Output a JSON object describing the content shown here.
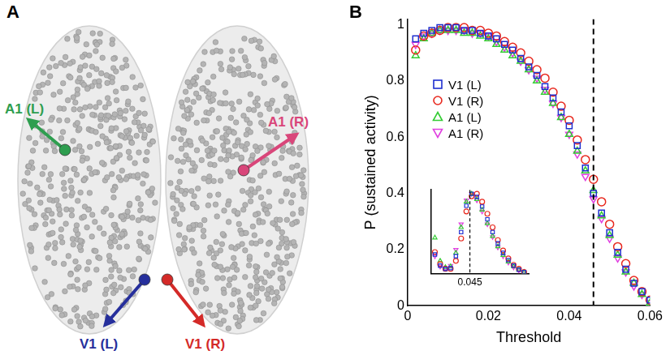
{
  "panel_labels": [
    "A",
    "B"
  ],
  "diagram": {
    "regions": [
      {
        "label": "A1 (L)",
        "color": "#2e9e4f"
      },
      {
        "label": "A1 (R)",
        "color": "#d9467a"
      },
      {
        "label": "V1 (L)",
        "color": "#262f9c"
      },
      {
        "label": "V1 (R)",
        "color": "#d42a28"
      }
    ]
  },
  "chart_data": [
    {
      "type": "scatter",
      "x_label": "Threshold",
      "y_label": "P (sustained activity)",
      "x": [
        0.002,
        0.004,
        0.006,
        0.008,
        0.01,
        0.012,
        0.014,
        0.016,
        0.018,
        0.02,
        0.022,
        0.024,
        0.026,
        0.028,
        0.03,
        0.032,
        0.034,
        0.036,
        0.038,
        0.04,
        0.042,
        0.044,
        0.046,
        0.048,
        0.05,
        0.052,
        0.054,
        0.056,
        0.058,
        0.06
      ],
      "series": [
        {
          "name": "V1 (L)",
          "color": "#1f2fd0",
          "marker": "square",
          "values": [
            0.95,
            0.97,
            0.98,
            0.99,
            0.99,
            0.99,
            0.98,
            0.98,
            0.97,
            0.96,
            0.95,
            0.93,
            0.91,
            0.88,
            0.85,
            0.82,
            0.78,
            0.74,
            0.69,
            0.64,
            0.57,
            0.49,
            0.4,
            0.33,
            0.26,
            0.19,
            0.13,
            0.08,
            0.05,
            0.02
          ]
        },
        {
          "name": "V1 (R)",
          "color": "#e8281e",
          "marker": "circle",
          "values": [
            0.91,
            0.96,
            0.97,
            0.98,
            0.99,
            0.99,
            0.99,
            0.98,
            0.98,
            0.97,
            0.96,
            0.94,
            0.92,
            0.9,
            0.87,
            0.84,
            0.81,
            0.76,
            0.71,
            0.66,
            0.59,
            0.52,
            0.45,
            0.37,
            0.29,
            0.21,
            0.15,
            0.09,
            0.05,
            0.02
          ]
        },
        {
          "name": "A1 (L)",
          "color": "#33cc33",
          "marker": "triangle",
          "values": [
            0.89,
            0.95,
            0.97,
            0.98,
            0.98,
            0.98,
            0.97,
            0.97,
            0.96,
            0.95,
            0.93,
            0.91,
            0.89,
            0.87,
            0.84,
            0.8,
            0.76,
            0.72,
            0.67,
            0.61,
            0.55,
            0.48,
            0.41,
            0.32,
            0.25,
            0.18,
            0.12,
            0.08,
            0.04,
            0.01
          ]
        },
        {
          "name": "A1 (R)",
          "color": "#e040e0",
          "marker": "triangle-down",
          "values": [
            0.93,
            0.96,
            0.97,
            0.98,
            0.98,
            0.98,
            0.98,
            0.97,
            0.97,
            0.96,
            0.94,
            0.92,
            0.9,
            0.87,
            0.84,
            0.81,
            0.77,
            0.72,
            0.67,
            0.61,
            0.54,
            0.46,
            0.38,
            0.31,
            0.24,
            0.17,
            0.12,
            0.07,
            0.04,
            0.01
          ]
        }
      ],
      "xlim": [
        0,
        0.06
      ],
      "xticks": [
        0,
        0.02,
        0.04,
        0.06
      ],
      "ylim": [
        0,
        1.02
      ],
      "yticks": [
        0,
        0.2,
        0.4,
        0.6,
        0.8,
        1
      ],
      "vline": 0.046,
      "grid": false,
      "legend": "left"
    },
    {
      "type": "scatter",
      "x": [
        0.035,
        0.0365,
        0.038,
        0.0395,
        0.041,
        0.0425,
        0.044,
        0.0455,
        0.047,
        0.0485,
        0.05,
        0.0515,
        0.053,
        0.0545,
        0.056,
        0.0575,
        0.059,
        0.0605
      ],
      "series": [
        {
          "color": "#1f2fd0",
          "marker": "square",
          "values": [
            0.24,
            0.1,
            0.06,
            0.07,
            0.22,
            0.52,
            0.85,
            1.0,
            0.96,
            0.84,
            0.68,
            0.52,
            0.38,
            0.26,
            0.17,
            0.1,
            0.05,
            0.02
          ]
        },
        {
          "color": "#e8281e",
          "marker": "circle",
          "values": [
            0.27,
            0.12,
            0.06,
            0.06,
            0.16,
            0.44,
            0.78,
            0.97,
            1.0,
            0.9,
            0.75,
            0.58,
            0.42,
            0.29,
            0.19,
            0.11,
            0.06,
            0.02
          ]
        },
        {
          "color": "#33cc33",
          "marker": "triangle",
          "values": [
            0.45,
            0.16,
            0.08,
            0.09,
            0.26,
            0.58,
            0.9,
            1.0,
            0.93,
            0.8,
            0.63,
            0.47,
            0.34,
            0.23,
            0.15,
            0.09,
            0.05,
            0.02
          ]
        },
        {
          "color": "#e040e0",
          "marker": "triangle-down",
          "values": [
            0.22,
            0.09,
            0.07,
            0.1,
            0.3,
            0.62,
            0.92,
            1.0,
            0.92,
            0.78,
            0.62,
            0.46,
            0.33,
            0.22,
            0.14,
            0.08,
            0.04,
            0.01
          ]
        }
      ],
      "xlim": [
        0.034,
        0.062
      ],
      "xticks": [
        0.045
      ],
      "ylim": [
        0,
        1.05
      ],
      "vline": 0.045,
      "tick_labels": "x",
      "grid": false
    }
  ]
}
